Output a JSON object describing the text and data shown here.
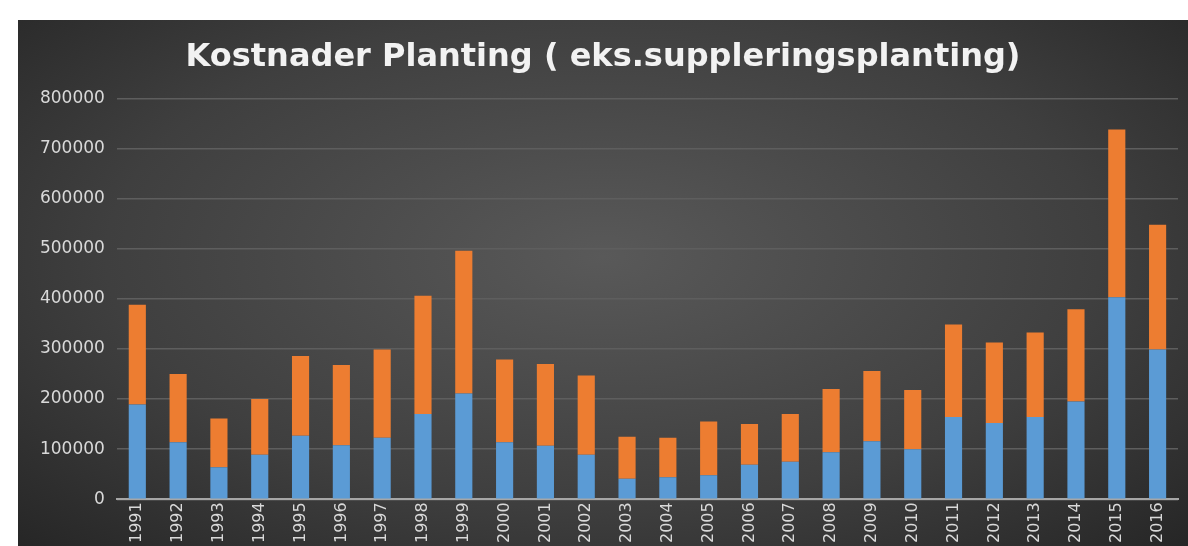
{
  "chart_data": {
    "type": "bar",
    "title": "Kostnader Planting ( eks.suppleringsplanting)",
    "stacked": true,
    "grid": "y",
    "legend": false,
    "categories": [
      "1991",
      "1992",
      "1993",
      "1994",
      "1995",
      "1996",
      "1997",
      "1998",
      "1999",
      "2000",
      "2001",
      "2002",
      "2003",
      "2004",
      "2005",
      "2006",
      "2007",
      "2008",
      "2009",
      "2010",
      "2011",
      "2012",
      "2013",
      "2014",
      "2015",
      "2016"
    ],
    "series": [
      {
        "color": "#5b9bd5",
        "values": [
          189000,
          114000,
          64000,
          89000,
          127000,
          108000,
          123000,
          170000,
          211000,
          114000,
          107000,
          89000,
          41000,
          44000,
          48000,
          69000,
          75000,
          94000,
          116000,
          100000,
          164000,
          152000,
          164000,
          195000,
          403000,
          299000
        ]
      },
      {
        "color": "#ed7d31",
        "values": [
          199000,
          136000,
          97000,
          111000,
          159000,
          160000,
          176000,
          236000,
          285000,
          165000,
          163000,
          158000,
          84000,
          79000,
          107000,
          81000,
          95000,
          126000,
          140000,
          118000,
          185000,
          161000,
          169000,
          184000,
          335000,
          249000
        ]
      }
    ],
    "ylim": [
      0,
      800000
    ],
    "yticks": [
      0,
      100000,
      200000,
      300000,
      400000,
      500000,
      600000,
      700000,
      800000
    ]
  }
}
